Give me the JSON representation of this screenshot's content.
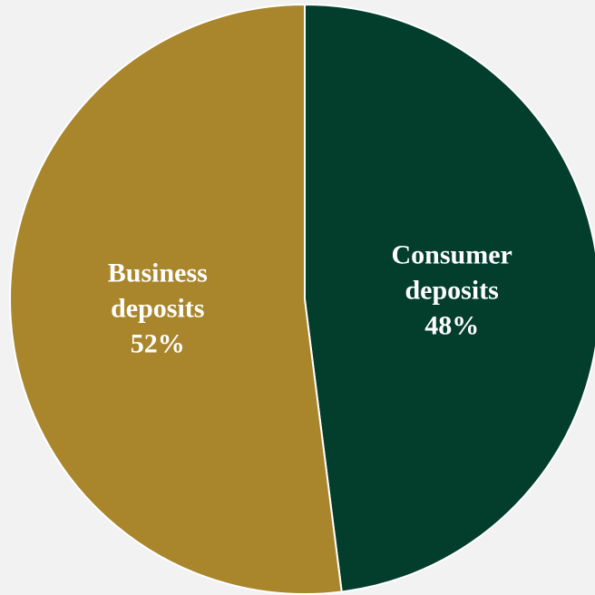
{
  "chart_data": {
    "type": "pie",
    "title": "",
    "slices": [
      {
        "label_line1": "Consumer",
        "label_line2": "deposits",
        "value_label": "48%",
        "value": 48,
        "color": "#033d2b"
      },
      {
        "label_line1": "Business",
        "label_line2": "deposits",
        "value_label": "52%",
        "value": 52,
        "color": "#a9852b"
      }
    ],
    "legend": "none",
    "start_angle": "12 o'clock",
    "direction": "clockwise"
  }
}
